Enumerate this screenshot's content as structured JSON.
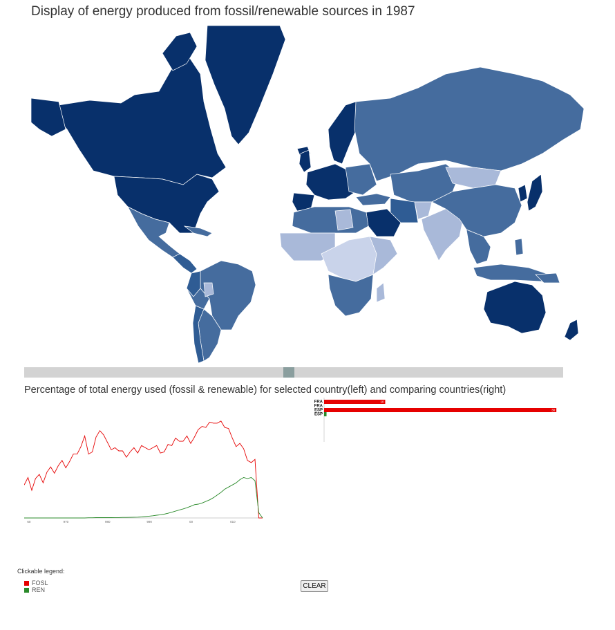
{
  "title": "Display of energy produced from fossil/renewable sources in 1987",
  "map": {
    "colors": {
      "dark": "#08306b",
      "medium_dark": "#2f5c94",
      "medium": "#456c9e",
      "light": "#a9b9d9",
      "very_light": "#c9d3ea",
      "border": "#ffffff"
    }
  },
  "slider": {
    "selected_year": 1987
  },
  "comparison_title": "Percentage of total energy used (fossil & renewable) for selected country(left) and comparing countries(right)",
  "chart_data": [
    {
      "type": "line",
      "x_tick_labels": [
        "60",
        "970",
        "980",
        "990",
        "00",
        "010"
      ],
      "series": [
        {
          "name": "FOSL",
          "color": "#e60000",
          "values": [
            31,
            38,
            26,
            37,
            41,
            33,
            43,
            48,
            42,
            49,
            54,
            47,
            53,
            60,
            60,
            67,
            77,
            60,
            62,
            76,
            82,
            78,
            71,
            64,
            66,
            63,
            63,
            57,
            62,
            66,
            61,
            68,
            66,
            64,
            66,
            68,
            61,
            62,
            69,
            68,
            75,
            72,
            72,
            77,
            70,
            76,
            83,
            86,
            85,
            90,
            89,
            89,
            91,
            85,
            84,
            75,
            67,
            70,
            65,
            54,
            52,
            55,
            0,
            0
          ]
        },
        {
          "name": "REN",
          "color": "#2a8a2a",
          "values": [
            0,
            0,
            0,
            0,
            0,
            0,
            0,
            0,
            0,
            0,
            0,
            0,
            0,
            0,
            0,
            0,
            0,
            0.2,
            0.2,
            0.3,
            0.3,
            0.3,
            0.3,
            0.3,
            0.4,
            0.4,
            0.5,
            0.5,
            0.6,
            0.7,
            0.8,
            1,
            1.3,
            1.7,
            2.1,
            2.6,
            3,
            3.6,
            4.4,
            5.4,
            6.4,
            7.5,
            8.5,
            9.6,
            11,
            12.5,
            13,
            14,
            15.5,
            17,
            19,
            21.5,
            24,
            27,
            29,
            31,
            33,
            36,
            38,
            37,
            38,
            35,
            5,
            0
          ]
        }
      ],
      "ylim": [
        0,
        100
      ]
    },
    {
      "type": "bar",
      "categories": [
        "FRA",
        "FRA",
        "ESP",
        "ESP"
      ],
      "series": [
        {
          "name": "FOSL",
          "color": "#e60000",
          "values": [
            10,
            0,
            38,
            0
          ],
          "labels": [
            "10",
            "",
            "38",
            ""
          ]
        },
        {
          "name": "REN",
          "color": "#2a8a2a",
          "values": [
            0,
            0,
            0,
            0.4
          ],
          "labels": [
            "",
            "",
            "",
            ""
          ]
        }
      ],
      "xlim": [
        0,
        39
      ]
    }
  ],
  "legend": {
    "title": "Clickable legend:",
    "items": [
      {
        "label": "FOSL",
        "color": "#e60000"
      },
      {
        "label": "REN",
        "color": "#2a8a2a"
      }
    ]
  },
  "clear_button": "CLEAR"
}
